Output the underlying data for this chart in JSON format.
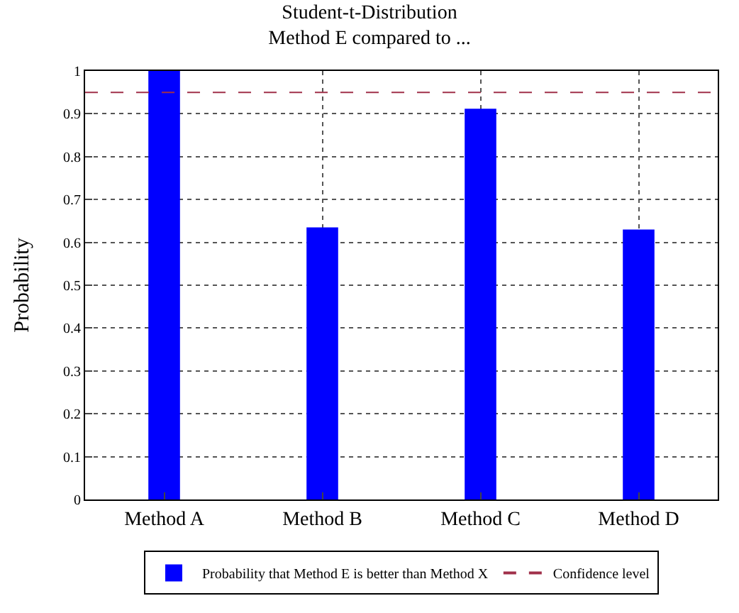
{
  "chart_data": {
    "type": "bar",
    "title": "Student-t-Distribution",
    "subtitle": "Method E compared to ...",
    "ylabel": "Probability",
    "categories": [
      "Method A",
      "Method B",
      "Method C",
      "Method D"
    ],
    "series": [
      {
        "name": "Probability that Method E is better than Method X",
        "color": "#0000ff",
        "values": [
          1.0,
          0.635,
          0.912,
          0.63
        ]
      }
    ],
    "ylim": [
      0,
      1
    ],
    "yticks": [
      0,
      0.1,
      0.2,
      0.3,
      0.4,
      0.5,
      0.6,
      0.7,
      0.8,
      0.9,
      1
    ],
    "ref_lines": [
      {
        "axis": "y",
        "value": 0.95,
        "label": "Confidence level",
        "color": "#a0304a",
        "line_style": "dashed"
      }
    ],
    "grid": true,
    "legend": "bottom"
  }
}
